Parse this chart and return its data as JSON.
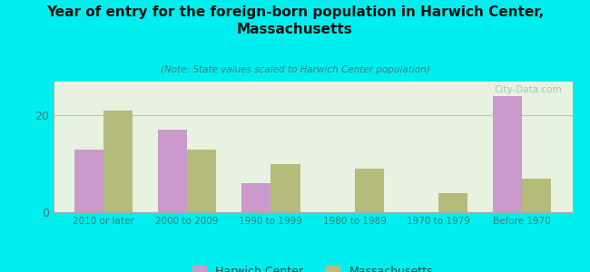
{
  "title": "Year of entry for the foreign-born population in Harwich Center,\nMassachusetts",
  "subtitle": "(Note: State values scaled to Harwich Center population)",
  "categories": [
    "2010 or later",
    "2000 to 2009",
    "1990 to 1999",
    "1980 to 1989",
    "1970 to 1979",
    "Before 1970"
  ],
  "harwich_values": [
    13,
    17,
    6,
    0,
    0,
    24
  ],
  "mass_values": [
    21,
    13,
    10,
    9,
    4,
    7
  ],
  "harwich_color": "#cc99cc",
  "mass_color": "#b5bb7a",
  "bg_outer": "#00eeee",
  "bg_plot_top": "#e8f2e0",
  "bg_plot_bottom": "#f5faf0",
  "grid_color": "#e8b0b0",
  "ylim": [
    0,
    27
  ],
  "yticks": [
    0,
    20
  ],
  "bar_width": 0.35,
  "legend_harwich": "Harwich Center",
  "legend_mass": "Massachusetts"
}
